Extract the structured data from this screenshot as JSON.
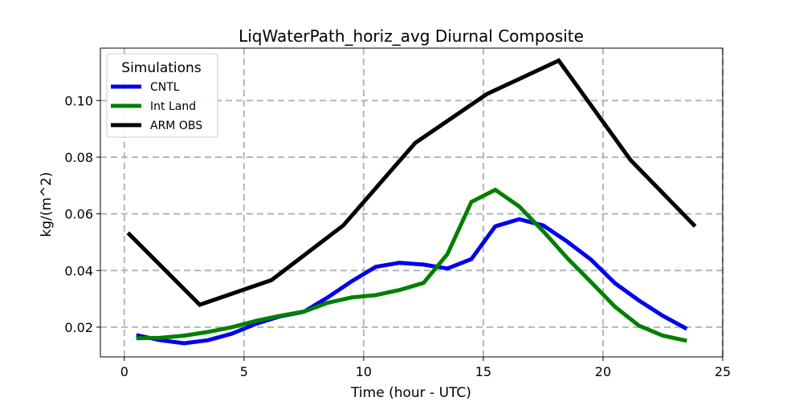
{
  "chart_data": {
    "type": "line",
    "title": "LiqWaterPath_horiz_avg Diurnal Composite",
    "xlabel": "Time (hour - UTC)",
    "ylabel": "kg/(m^2)",
    "xlim": [
      -1,
      25
    ],
    "ylim": [
      0.0095,
      0.1185
    ],
    "xticks": [
      0,
      5,
      10,
      15,
      20,
      25
    ],
    "xtick_labels": [
      "0",
      "5",
      "10",
      "15",
      "20",
      "25"
    ],
    "yticks": [
      0.02,
      0.04,
      0.06,
      0.08,
      0.1
    ],
    "ytick_labels": [
      "0.02",
      "0.04",
      "0.06",
      "0.08",
      "0.10"
    ],
    "grid": true,
    "legend": {
      "title": "Simulations",
      "location": "top-left"
    },
    "series": [
      {
        "name": "CNTL",
        "color": "#0000ee",
        "x": [
          0.5,
          1.5,
          2.5,
          3.5,
          4.5,
          5.5,
          6.5,
          7.5,
          8.5,
          9.5,
          10.5,
          11.5,
          12.5,
          13.5,
          14.5,
          15.5,
          16.5,
          17.5,
          18.5,
          19.5,
          20.5,
          21.5,
          22.5,
          23.5
        ],
        "y": [
          0.0172,
          0.0154,
          0.0143,
          0.0154,
          0.0177,
          0.0212,
          0.0238,
          0.0254,
          0.0305,
          0.0362,
          0.0413,
          0.0427,
          0.0421,
          0.0407,
          0.044,
          0.0556,
          0.0581,
          0.0559,
          0.0502,
          0.0438,
          0.0355,
          0.0294,
          0.024,
          0.0194
        ]
      },
      {
        "name": "Int Land",
        "color": "#008000",
        "x": [
          0.5,
          1.5,
          2.5,
          3.5,
          4.5,
          5.5,
          6.5,
          7.5,
          8.5,
          9.5,
          10.5,
          11.5,
          12.5,
          13.5,
          14.5,
          15.5,
          16.5,
          17.5,
          18.5,
          19.5,
          20.5,
          21.5,
          22.5,
          23.5
        ],
        "y": [
          0.0161,
          0.0162,
          0.017,
          0.0183,
          0.02,
          0.0222,
          0.024,
          0.0255,
          0.0286,
          0.0305,
          0.0313,
          0.0331,
          0.0356,
          0.0458,
          0.0642,
          0.0685,
          0.0626,
          0.0539,
          0.0444,
          0.0359,
          0.0272,
          0.0205,
          0.017,
          0.0152
        ]
      },
      {
        "name": "ARM OBS",
        "color": "#000000",
        "x": [
          0.15,
          3.15,
          6.15,
          9.15,
          12.15,
          15.15,
          18.15,
          21.15,
          23.85
        ],
        "y": [
          0.0533,
          0.0279,
          0.0366,
          0.0559,
          0.085,
          0.1023,
          0.1141,
          0.079,
          0.0556
        ]
      }
    ]
  }
}
